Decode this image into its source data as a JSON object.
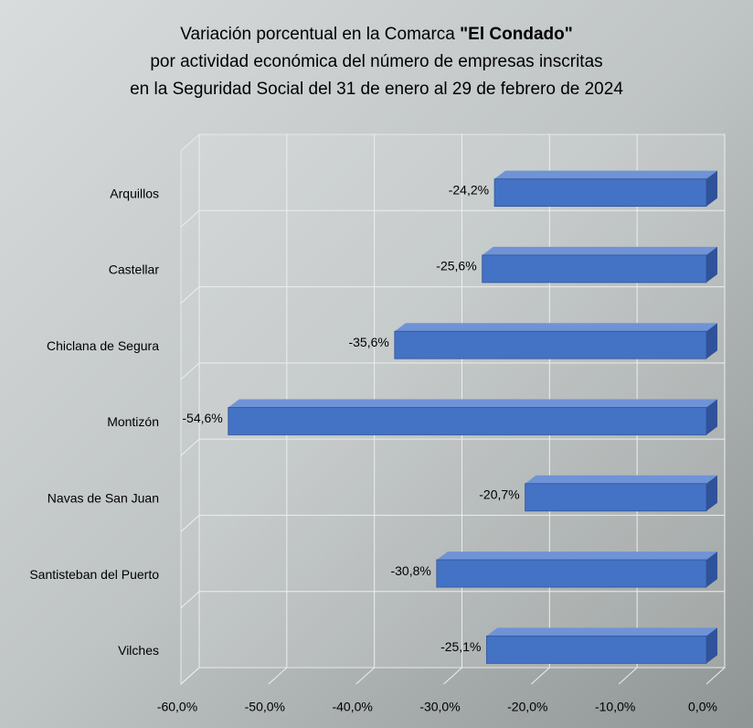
{
  "chart_data": {
    "type": "bar",
    "orientation": "horizontal",
    "title": {
      "line1": "Variación porcentual en la Comarca",
      "line1_bold": "\"El Condado\"",
      "line2": "por actividad económica del número de empresas inscritas",
      "line3": "en la Seguridad Social del 31 de enero al 29 de febrero de 2024"
    },
    "categories": [
      "Arquillos",
      "Castellar",
      "Chiclana de Segura",
      "Montizón",
      "Navas de San Juan",
      "Santisteban del Puerto",
      "Vilches"
    ],
    "values": [
      -24.2,
      -25.6,
      -35.6,
      -54.6,
      -20.7,
      -30.8,
      -25.1
    ],
    "value_labels": [
      "-24,2%",
      "-25,6%",
      "-35,6%",
      "-54,6%",
      "-20,7%",
      "-30,8%",
      "-25,1%"
    ],
    "color": "#4472c4",
    "xlim": [
      -60,
      0
    ],
    "xticks": [
      {
        "value": -60,
        "label": "-60,0%"
      },
      {
        "value": -50,
        "label": "-50,0%"
      },
      {
        "value": -40,
        "label": "-40,0%"
      },
      {
        "value": -30,
        "label": "-30,0%"
      },
      {
        "value": -20,
        "label": "-20,0%"
      },
      {
        "value": -10,
        "label": "-10,0%"
      },
      {
        "value": 0,
        "label": "0,0%"
      }
    ],
    "grid": true
  }
}
